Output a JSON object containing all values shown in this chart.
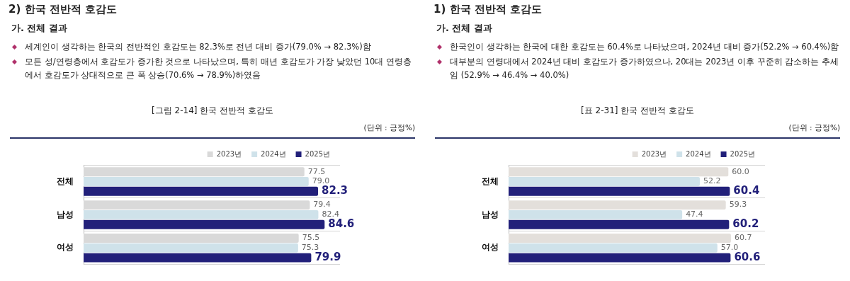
{
  "chart_data": [
    {
      "type": "bar",
      "orientation": "horizontal",
      "title": "2) 한국 전반적 호감도",
      "subtitle": "가. 전체 결과",
      "annotations": [
        "세계인이 생각하는 한국의 전반적인 호감도는 82.3%로 전년 대비 증가(79.0% → 82.3%)함",
        "모든 성/연령층에서 호감도가 증가한 것으로 나타났으며, 특히 매년 호감도가 가장 낮았던 10대 연령층에서 호감도가 상대적으로 큰 폭 상승(70.6% → 78.9%)하였음",
        "[그림 2-14] 한국 전반적 호감도",
        "(단위 : 긍정%)"
      ],
      "categories": [
        "전체",
        "남성",
        "여성"
      ],
      "series": [
        {
          "name": "2023년",
          "color": "#d9d9d9",
          "values": [
            77.5,
            79.4,
            75.5
          ],
          "value_labels": [
            "77.5",
            "79.4",
            "75.5"
          ]
        },
        {
          "name": "2024년",
          "color": "#cfe2ea",
          "values": [
            79.0,
            82.4,
            75.3
          ],
          "value_labels": [
            "79.0",
            "82.4",
            "75.3"
          ]
        },
        {
          "name": "2025년",
          "color": "#22207a",
          "values": [
            82.3,
            84.6,
            79.9
          ],
          "value_labels": [
            "82.3",
            "84.6",
            "79.9"
          ]
        }
      ],
      "legend": "top right",
      "grid": "y"
    },
    {
      "type": "bar",
      "orientation": "horizontal",
      "title": "1) 한국 전반적 호감도",
      "subtitle": "가. 전체 결과",
      "annotations": [
        "한국인이 생각하는 한국에 대한 호감도는 60.4%로 나타났으며, 2024년 대비 증가(52.2% → 60.4%)함",
        "대부분의 연령대에서 2024년 대비 호감도가 증가하였으나, 20대는 2023년 이후 꾸준히 감소하는 추세임 (52.9% → 46.4% → 40.0%)",
        "[표 2-31] 한국 전반적 호감도",
        "(단위 : 긍정%)"
      ],
      "categories": [
        "전체",
        "남성",
        "여성"
      ],
      "series": [
        {
          "name": "2023년",
          "color": "#e3dfdb",
          "values": [
            60.0,
            59.3,
            60.7
          ],
          "value_labels": [
            "60.0",
            "59.3",
            "60.7"
          ]
        },
        {
          "name": "2024년",
          "color": "#cfe2ea",
          "values": [
            52.2,
            47.4,
            57.0
          ],
          "value_labels": [
            "52.2",
            "47.4",
            "57.0"
          ]
        },
        {
          "name": "2025년",
          "color": "#22207a",
          "values": [
            60.4,
            60.2,
            60.6
          ],
          "value_labels": [
            "60.4",
            "60.2",
            "60.6"
          ]
        }
      ],
      "legend": "top right",
      "grid": "y"
    }
  ]
}
